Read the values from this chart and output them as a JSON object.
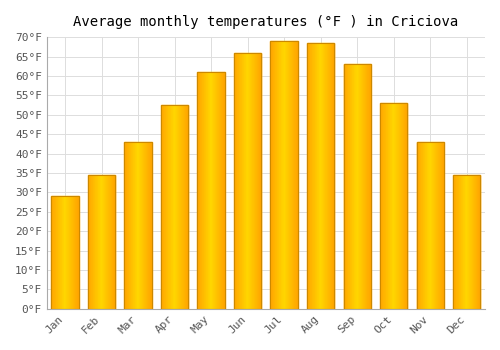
{
  "title": "Average monthly temperatures (°F ) in Criciova",
  "months": [
    "Jan",
    "Feb",
    "Mar",
    "Apr",
    "May",
    "Jun",
    "Jul",
    "Aug",
    "Sep",
    "Oct",
    "Nov",
    "Dec"
  ],
  "values": [
    29,
    34.5,
    43,
    52.5,
    61,
    66,
    69,
    68.5,
    63,
    53,
    43,
    34.5
  ],
  "bar_color_center": "#FFD700",
  "bar_color_edge": "#FFA500",
  "bar_outline_color": "#CC8800",
  "ylim": [
    0,
    70
  ],
  "yticks": [
    0,
    5,
    10,
    15,
    20,
    25,
    30,
    35,
    40,
    45,
    50,
    55,
    60,
    65,
    70
  ],
  "ytick_labels": [
    "0°F",
    "5°F",
    "10°F",
    "15°F",
    "20°F",
    "25°F",
    "30°F",
    "35°F",
    "40°F",
    "45°F",
    "50°F",
    "55°F",
    "60°F",
    "65°F",
    "70°F"
  ],
  "background_color": "#FFFFFF",
  "grid_color": "#DDDDDD",
  "title_fontsize": 10,
  "tick_fontsize": 8,
  "font_family": "monospace",
  "bar_width": 0.75
}
